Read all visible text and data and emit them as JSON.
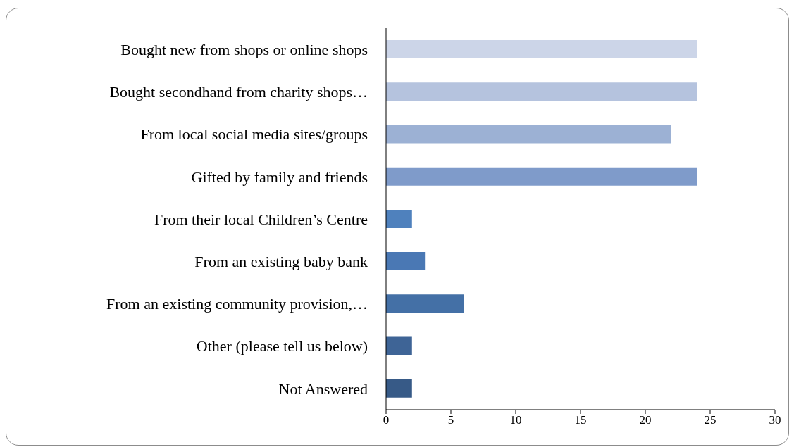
{
  "chart_data": {
    "type": "bar",
    "orientation": "horizontal",
    "categories": [
      "Bought new from shops or online shops",
      "Bought secondhand from charity shops…",
      "From local social media sites/groups",
      "Gifted by family and friends",
      "From their local Children’s Centre",
      "From an existing baby bank",
      "From an existing community provision,…",
      "Other (please tell us below)",
      "Not Answered"
    ],
    "values": [
      24,
      24,
      22,
      24,
      2,
      3,
      6,
      2,
      2
    ],
    "colors": [
      "#ccd5e8",
      "#b5c3de",
      "#9cb1d4",
      "#7f9bca",
      "#4f81bd",
      "#4a78b4",
      "#4470a6",
      "#3e6496",
      "#375a87"
    ],
    "xlim": [
      0,
      30
    ],
    "xticks": [
      0,
      5,
      10,
      15,
      20,
      25,
      30
    ],
    "grid": false,
    "legend": false
  }
}
